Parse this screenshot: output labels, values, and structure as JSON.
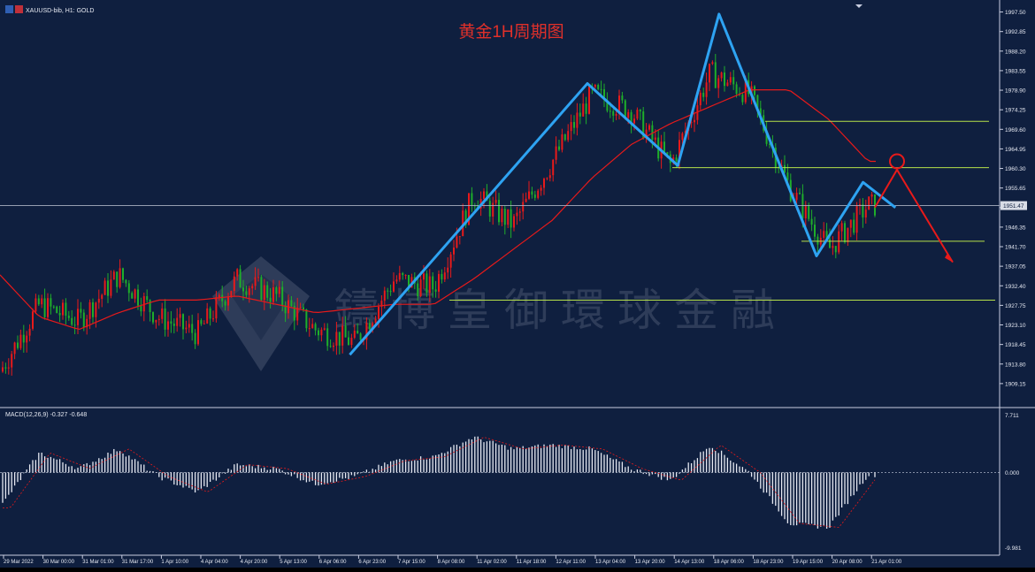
{
  "header": {
    "symbol_label": "XAUUSD-bib, H1:  GOLD"
  },
  "chart_title": "黄金1H周期图",
  "watermark": "鑄博皇御環球金融",
  "price_axis": {
    "min": 1904.5,
    "max": 1999.3,
    "ticks": [
      "1997.50",
      "1992.85",
      "1988.20",
      "1983.55",
      "1978.90",
      "1974.25",
      "1969.60",
      "1964.95",
      "1960.30",
      "1955.65",
      "1951.00",
      "1946.35",
      "1941.70",
      "1937.05",
      "1932.40",
      "1927.75",
      "1923.10",
      "1918.45",
      "1913.80",
      "1909.15"
    ],
    "current_price_label": "1951.47",
    "current_price": 1951.47
  },
  "macd": {
    "label": "MACD(12,26,9) -0.327 -0.648",
    "axis_top_label": "7.711",
    "axis_zero_label": "0.000",
    "axis_bottom_label": "-9.981",
    "max": 7.711,
    "min": -9.981
  },
  "time_axis": {
    "labels": [
      "29 Mar 2022",
      "30 Mar 00:00",
      "31 Mar 01:00",
      "31 Mar 17:00",
      "1 Apr 10:00",
      "4 Apr 04:00",
      "4 Apr 20:00",
      "5 Apr 13:00",
      "6 Apr 06:00",
      "6 Apr 23:00",
      "7 Apr 15:00",
      "8 Apr 08:00",
      "11 Apr 02:00",
      "11 Apr 18:00",
      "12 Apr 11:00",
      "13 Apr 04:00",
      "13 Apr 20:00",
      "14 Apr 13:00",
      "18 Apr 06:00",
      "18 Apr 23:00",
      "19 Apr 15:00",
      "20 Apr 08:00",
      "21 Apr 01:00"
    ]
  },
  "chart_data": {
    "type": "candlestick",
    "title": "黄金1H周期图",
    "symbol": "XAUUSD-bib",
    "timeframe": "H1",
    "ylim": [
      1904.5,
      1999.3
    ],
    "close_path_by_tick": {
      "x": [
        "29 Mar 2022",
        "30 Mar 00:00",
        "31 Mar 01:00",
        "31 Mar 17:00",
        "1 Apr 10:00",
        "4 Apr 04:00",
        "4 Apr 20:00",
        "5 Apr 13:00",
        "6 Apr 06:00",
        "6 Apr 23:00",
        "7 Apr 15:00",
        "8 Apr 08:00",
        "11 Apr 02:00",
        "11 Apr 18:00",
        "12 Apr 11:00",
        "13 Apr 04:00",
        "13 Apr 20:00",
        "14 Apr 13:00",
        "18 Apr 06:00",
        "18 Apr 23:00",
        "19 Apr 15:00",
        "20 Apr 08:00",
        "21 Apr 01:00"
      ],
      "y": [
        1912,
        1928,
        1924,
        1935,
        1925,
        1921,
        1934,
        1930,
        1922,
        1919,
        1934,
        1932,
        1954,
        1947,
        1962,
        1978,
        1974,
        1961,
        1983,
        1978,
        1956,
        1941,
        1951.5
      ]
    },
    "ma_line": {
      "x": [
        "29 Mar 2022",
        "30 Mar 00:00",
        "31 Mar 01:00",
        "31 Mar 17:00",
        "1 Apr 10:00",
        "4 Apr 04:00",
        "4 Apr 20:00",
        "5 Apr 13:00",
        "6 Apr 06:00",
        "6 Apr 23:00",
        "7 Apr 15:00",
        "8 Apr 08:00",
        "11 Apr 02:00",
        "11 Apr 18:00",
        "12 Apr 11:00",
        "13 Apr 04:00",
        "13 Apr 20:00",
        "14 Apr 13:00",
        "18 Apr 06:00",
        "18 Apr 23:00",
        "19 Apr 15:00",
        "20 Apr 08:00",
        "21 Apr 01:00"
      ],
      "y": [
        1935,
        1925,
        1922,
        1926,
        1929,
        1929,
        1930,
        1928,
        1926,
        1927,
        1928,
        1928,
        1934,
        1941,
        1948,
        1958,
        1966,
        1971,
        1975,
        1979,
        1979,
        1972,
        1962
      ]
    },
    "horizontal_levels": [
      1971.5,
      1960.5,
      1943.0,
      1929.0
    ],
    "current_price": 1951.47,
    "blue_zigzag": [
      {
        "x": "6 Apr 23:00",
        "y": 1916.0
      },
      {
        "x": "13 Apr 04:00",
        "y": 1980.5
      },
      {
        "x": "14 Apr 13:00",
        "y": 1961.0
      },
      {
        "x": "18 Apr 06:00",
        "y": 1997.0
      },
      {
        "x": "19 Apr 15:00",
        "y": 1939.5
      },
      {
        "x": "20 Apr 08:00",
        "y": 1957.0
      },
      {
        "x": "21 Apr 01:00",
        "y": 1951.0
      }
    ],
    "red_projection": [
      {
        "x": "21 Apr 01:00",
        "y": 1951.0
      },
      {
        "x": "21 Apr 01:00",
        "y": 1960.0
      },
      {
        "x": "21 Apr 01:00",
        "y": 1938.0
      }
    ],
    "macd_hist_by_tick": {
      "x": [
        "29 Mar 2022",
        "30 Mar 00:00",
        "31 Mar 01:00",
        "31 Mar 17:00",
        "1 Apr 10:00",
        "4 Apr 04:00",
        "4 Apr 20:00",
        "5 Apr 13:00",
        "6 Apr 06:00",
        "6 Apr 23:00",
        "7 Apr 15:00",
        "8 Apr 08:00",
        "11 Apr 02:00",
        "11 Apr 18:00",
        "12 Apr 11:00",
        "13 Apr 04:00",
        "13 Apr 20:00",
        "14 Apr 13:00",
        "18 Apr 06:00",
        "18 Apr 23:00",
        "19 Apr 15:00",
        "20 Apr 08:00",
        "21 Apr 01:00"
      ],
      "y": [
        -4.5,
        2.5,
        0.5,
        3.0,
        -0.5,
        -2.5,
        1.0,
        0.5,
        -1.5,
        -0.5,
        1.5,
        2.0,
        4.5,
        3.0,
        3.5,
        3.0,
        0.5,
        -1.0,
        3.5,
        0.0,
        -6.5,
        -7.0,
        -0.3
      ]
    }
  }
}
